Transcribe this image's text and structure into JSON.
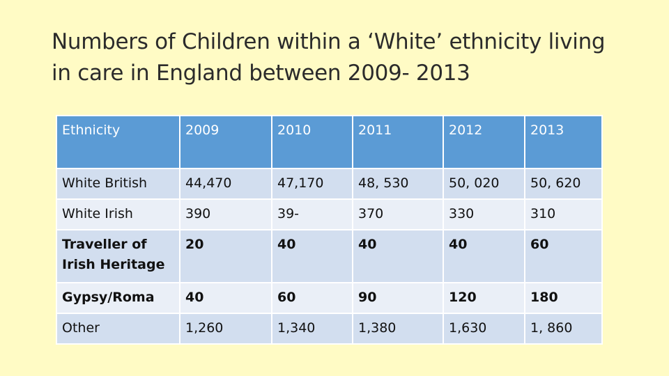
{
  "title": "Numbers of Children within a ‘White’ ethnicity living in care in England between 2009- 2013",
  "table": {
    "headers": [
      "Ethnicity",
      "2009",
      "2010",
      "2011",
      "2012",
      "2013"
    ],
    "rows": [
      [
        "White British",
        "44,470",
        "47,170",
        "48, 530",
        "50, 020",
        "50, 620"
      ],
      [
        "White Irish",
        "390",
        "39-",
        "370",
        "330",
        "310"
      ],
      [
        "Traveller of Irish Heritage",
        "20",
        "40",
        "40",
        "40",
        "60"
      ],
      [
        "Gypsy/Roma",
        "40",
        "60",
        "90",
        "120",
        "180"
      ],
      [
        "Other",
        "1,260",
        "1,340",
        "1,380",
        "1,630",
        "1, 860"
      ]
    ]
  },
  "colors": {
    "background": "#FFFBC5",
    "header": "#5B9BD5",
    "row_dark": "#D2DEEF",
    "row_light": "#EAEFF7"
  }
}
